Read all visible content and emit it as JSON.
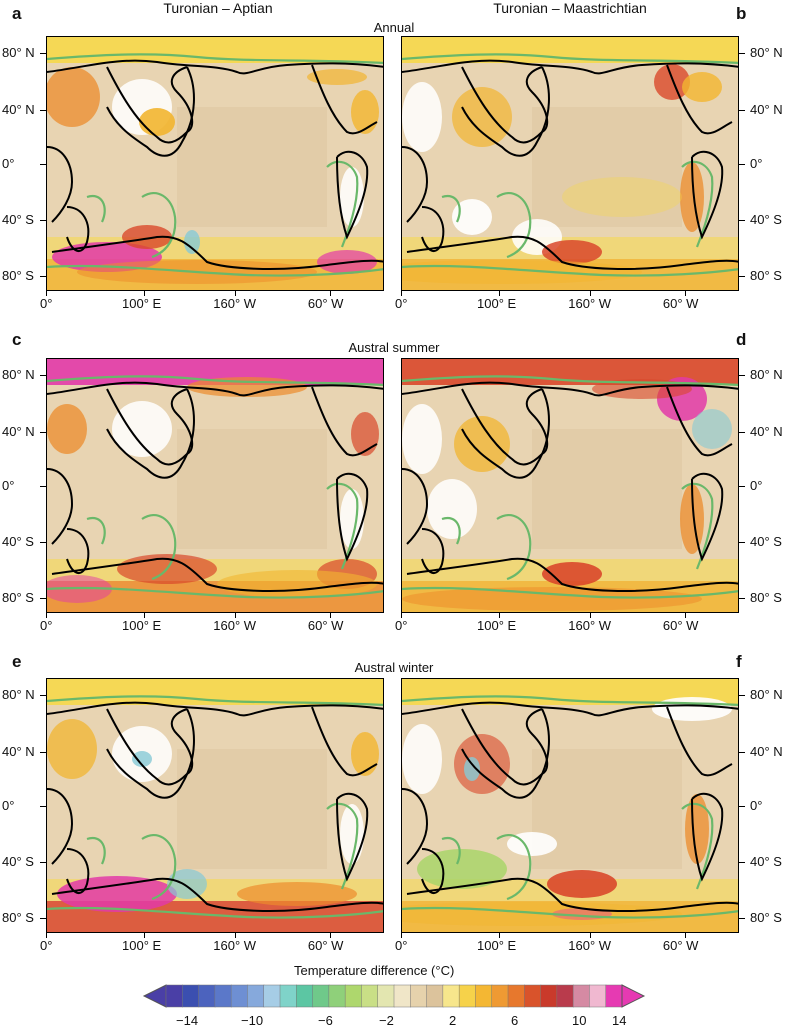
{
  "columns": {
    "left": "Turonian – Aptian",
    "right": "Turonian – Maastrichtian"
  },
  "rows": [
    {
      "title": "Annual",
      "left_letter": "a",
      "right_letter": "b"
    },
    {
      "title": "Austral summer",
      "left_letter": "c",
      "right_letter": "d"
    },
    {
      "title": "Austral winter",
      "left_letter": "e",
      "right_letter": "f"
    }
  ],
  "axes": {
    "y_ticks": [
      "80° N",
      "40° N",
      "0°",
      "40° S",
      "80° S"
    ],
    "x_ticks": [
      "0°",
      "100° E",
      "160° W",
      "60° W"
    ]
  },
  "colorbar": {
    "title": "Temperature difference (°C)",
    "tick_labels": [
      "−14",
      "−10",
      "−6",
      "−2",
      "2",
      "6",
      "10",
      "14"
    ],
    "colors": [
      "#4a3fa6",
      "#3b4fb0",
      "#4c63be",
      "#5b78c9",
      "#6e8fd3",
      "#86a9dc",
      "#a6cde6",
      "#7fd3c9",
      "#5cc6a3",
      "#6fc98a",
      "#8fd07a",
      "#aed76d",
      "#c9df86",
      "#e3e6b0",
      "#f0e6c8",
      "#e6d2ac",
      "#dcc39c",
      "#f7e68c",
      "#f6d24a",
      "#f4b733",
      "#ef9a33",
      "#e7782d",
      "#d9532b",
      "#c93a2b",
      "#b93b4c",
      "#d58aa3",
      "#f0b8d0",
      "#e63ab2"
    ]
  },
  "map_colors": {
    "ocean_base": "#e8d4b2",
    "ocean_dark": "#dbc39c",
    "warm_light": "#f6d84a",
    "warm_mid": "#f2b530",
    "warm_orange": "#ec8c2c",
    "warm_red": "#d9482b",
    "magenta": "#e23aa8",
    "cool_green": "#a9d56a",
    "cool_cyan": "#86c9d6",
    "land_white": "#ffffff",
    "coast_present": "#000000",
    "coast_past": "#6ab86a"
  }
}
